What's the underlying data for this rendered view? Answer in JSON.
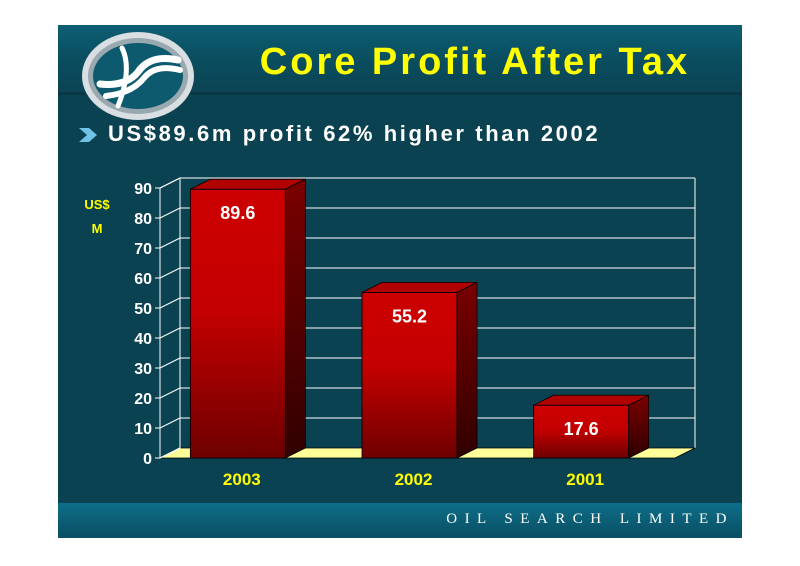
{
  "title": "Core Profit After Tax",
  "bullet": "US$89.6m profit 62%  higher than 2002",
  "footer": "OIL SEARCH LIMITED",
  "colors": {
    "background": "#0b4251",
    "title": "#ffff00",
    "bar": "#cc0000",
    "floor": "#ffff99",
    "footer": "#0b5c73"
  },
  "icons": {
    "logo": "oil-search-logo",
    "bullet": "chevron-right-icon"
  },
  "chart_data": {
    "type": "bar",
    "categories": [
      "2003",
      "2002",
      "2001"
    ],
    "values": [
      89.6,
      55.2,
      17.6
    ],
    "data_labels": [
      "89.6",
      "55.2",
      "17.6"
    ],
    "ylabel_lines": [
      "US$",
      "M"
    ],
    "ylim": [
      0,
      90
    ],
    "yticks": [
      0,
      10,
      20,
      30,
      40,
      50,
      60,
      70,
      80,
      90
    ],
    "grid": true,
    "style": "3d"
  }
}
